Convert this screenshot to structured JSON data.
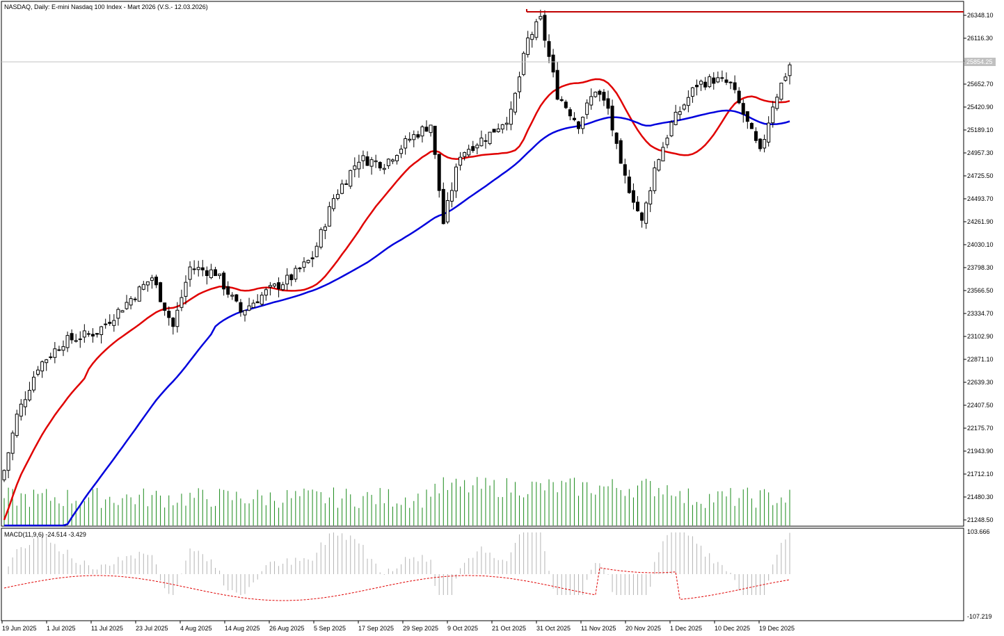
{
  "window": {
    "title": "NASDAQ, Daily:  E-mini Nasdaq 100 Index - Mart 2026 (V.S.- 12.03.2026)",
    "current_price_label": "25854.25"
  },
  "colors": {
    "bull_candle": "#ffffff",
    "bear_candle": "#000000",
    "ma_fast": "#e00000",
    "ma_slow": "#0000dd",
    "volume": "#1a8a1a",
    "macd_signal": "#e00000",
    "macd_hist": "#b4b4b4",
    "resistance_line": "#c00000"
  },
  "indicator": {
    "macd_label": "MACD(11,9,6) -24.514 -3.429",
    "macd_ticks": [
      "103.666",
      "-107.219"
    ]
  },
  "chart_data": {
    "type": "candlestick",
    "price_axis_ticks": [
      "26348.10",
      "26116.30",
      "25884.50",
      "25652.70",
      "25420.90",
      "25189.10",
      "24957.30",
      "24725.50",
      "24493.70",
      "24261.90",
      "24030.10",
      "23798.30",
      "23566.50",
      "23334.70",
      "23102.90",
      "22871.10",
      "22639.30",
      "22407.50",
      "22175.70",
      "21943.90",
      "21712.10",
      "21480.30",
      "21248.50"
    ],
    "price_range": [
      21020,
      26490
    ],
    "date_axis_ticks": [
      "19 Jun 2025",
      "1 Jul 2025",
      "11 Jul 2025",
      "23 Jul 2025",
      "4 Aug 2025",
      "14 Aug 2025",
      "26 Aug 2025",
      "5 Sep 2025",
      "17 Sep 2025",
      "29 Sep 2025",
      "9 Oct 2025",
      "21 Oct 2025",
      "31 Oct 2025",
      "11 Nov 2025",
      "20 Nov 2025",
      "1 Dec 2025",
      "10 Dec 2025",
      "19 Dec 2025"
    ],
    "resistance_level": 26348.1,
    "current_price": 25854.25,
    "macd_range": [
      -107.219,
      103.666
    ]
  }
}
